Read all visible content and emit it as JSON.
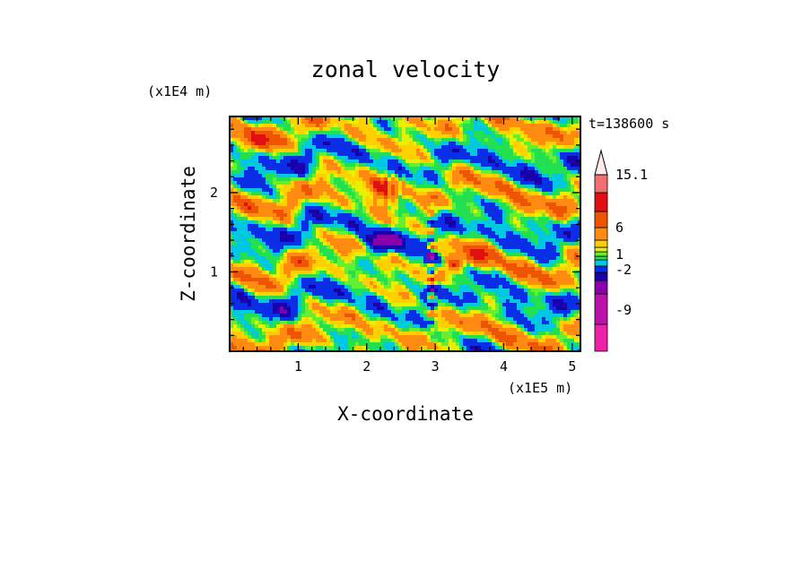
{
  "chart_data": {
    "type": "heatmap",
    "title": "zonal velocity",
    "xlabel": "X-coordinate",
    "ylabel": "Z-coordinate",
    "x_unit": "(x1E5 m)",
    "y_unit": "(x1E4 m)",
    "timestamp": "t=138600 s",
    "xlim": [
      0.0,
      5.12
    ],
    "ylim": [
      0.0,
      2.96
    ],
    "x_ticks": [
      1,
      2,
      3,
      4,
      5
    ],
    "x_tick_labels": [
      "1",
      "2",
      "3",
      "4",
      "5"
    ],
    "y_ticks": [
      1,
      2
    ],
    "y_tick_labels": [
      "1",
      "2"
    ],
    "colorbar": {
      "labeled_levels": [
        "15.1",
        "6",
        "1",
        "-2",
        "-9"
      ],
      "bands": [
        {
          "range": "< -12",
          "color": "#ee22aa"
        },
        {
          "range": "-12 to -9",
          "color": "#bb11aa"
        },
        {
          "range": "-9 to -6",
          "color": "#8800aa"
        },
        {
          "range": "-6 to -4",
          "color": "#1a00aa"
        },
        {
          "range": "-4 to -2",
          "color": "#0a2ee6"
        },
        {
          "range": "-2 to -1",
          "color": "#00c8e0"
        },
        {
          "range": "-1 to 0",
          "color": "#22e050"
        },
        {
          "range": "0 to 0.5",
          "color": "#66ee33"
        },
        {
          "range": "0.5 to 1",
          "color": "#e6f000"
        },
        {
          "range": "1 to 2",
          "color": "#ffd000"
        },
        {
          "range": "2 to 4",
          "color": "#ff8c10"
        },
        {
          "range": "4 to 6",
          "color": "#ee5500"
        },
        {
          "range": "6 to 9",
          "color": "#e01010"
        },
        {
          "range": "9 to 12",
          "color": "#f07070"
        },
        {
          "range": "12 to 15.1",
          "color": "#f8b4b4"
        },
        {
          "range": "> 15.1",
          "color": "#ffeaea"
        }
      ]
    },
    "field_features": [
      {
        "kind": "negative_core",
        "x": 2.95,
        "z": 1.12,
        "value": -8
      },
      {
        "kind": "positive_core",
        "x": 3.3,
        "z": 1.1,
        "value": 7
      },
      {
        "kind": "negative_band",
        "x": 2.15,
        "z": 1.35,
        "value": -5
      },
      {
        "kind": "negative_band",
        "x": 2.4,
        "z": 1.4,
        "value": -5
      },
      {
        "kind": "positive_band",
        "x": 2.2,
        "z": 2.05,
        "value": 5
      },
      {
        "kind": "positive_band",
        "x": 3.6,
        "z": 1.2,
        "value": 3
      },
      {
        "kind": "positive_band",
        "x": 0.4,
        "z": 2.65,
        "value": 3
      }
    ]
  }
}
